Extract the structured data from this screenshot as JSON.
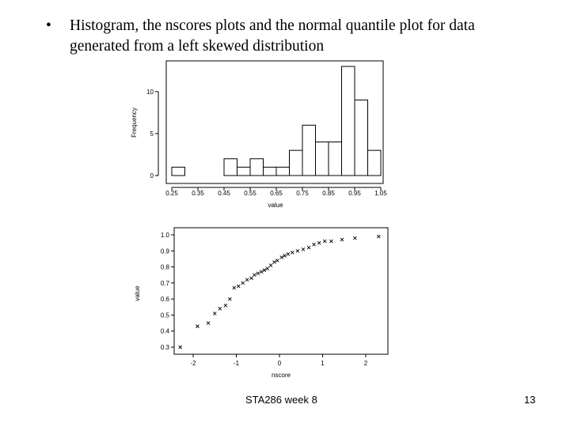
{
  "slide": {
    "bullet": "•",
    "title_text": "Histogram, the nscores plots and the normal quantile plot for data generated from a left skewed  distribution",
    "footer_text": "STA286 week 8",
    "page_number": "13"
  },
  "chart_data": [
    {
      "type": "bar",
      "subtype": "histogram",
      "xlabel": "value",
      "ylabel": "Frequency",
      "bin_width": 0.05,
      "bin_starts": [
        0.25,
        0.3,
        0.35,
        0.4,
        0.45,
        0.5,
        0.55,
        0.6,
        0.65,
        0.7,
        0.75,
        0.8,
        0.85,
        0.9,
        0.95,
        1.0
      ],
      "values": [
        1,
        0,
        0,
        0,
        2,
        1,
        2,
        1,
        1,
        3,
        6,
        4,
        4,
        13,
        9,
        3
      ],
      "xlim": [
        0.25,
        1.05
      ],
      "ylim": [
        0,
        13
      ],
      "x_ticks": [
        0.25,
        0.35,
        0.45,
        0.55,
        0.65,
        0.75,
        0.85,
        0.95,
        1.05
      ],
      "x_tick_labels": [
        "0.25",
        "0.35",
        "0.45",
        "0.55",
        "0.65",
        "0.75",
        "0.85",
        "0.95",
        "1.05"
      ],
      "y_ticks": [
        0,
        5,
        10
      ],
      "y_tick_labels": [
        "0",
        "5",
        "10"
      ],
      "grid": false
    },
    {
      "type": "scatter",
      "xlabel": "nscore",
      "ylabel": "value",
      "marker": "x",
      "x_ticks": [
        -2,
        -1,
        0,
        1,
        2
      ],
      "x_tick_labels": [
        "-2",
        "-1",
        "0",
        "1",
        "2"
      ],
      "y_ticks": [
        0.3,
        0.4,
        0.5,
        0.6,
        0.7,
        0.8,
        0.9,
        1.0
      ],
      "y_tick_labels": [
        "0.3",
        "0.4",
        "0.5",
        "0.6",
        "0.7",
        "0.8",
        "0.9",
        "1.0"
      ],
      "xlim": [
        -2.55,
        2.55
      ],
      "ylim": [
        0.27,
        1.01
      ],
      "points": [
        [
          -2.3,
          0.3
        ],
        [
          -1.9,
          0.43
        ],
        [
          -1.65,
          0.45
        ],
        [
          -1.5,
          0.51
        ],
        [
          -1.38,
          0.54
        ],
        [
          -1.25,
          0.56
        ],
        [
          -1.15,
          0.6
        ],
        [
          -1.05,
          0.67
        ],
        [
          -0.95,
          0.68
        ],
        [
          -0.85,
          0.7
        ],
        [
          -0.75,
          0.72
        ],
        [
          -0.65,
          0.73
        ],
        [
          -0.58,
          0.75
        ],
        [
          -0.5,
          0.76
        ],
        [
          -0.42,
          0.77
        ],
        [
          -0.35,
          0.78
        ],
        [
          -0.28,
          0.79
        ],
        [
          -0.2,
          0.81
        ],
        [
          -0.12,
          0.83
        ],
        [
          -0.05,
          0.84
        ],
        [
          0.05,
          0.86
        ],
        [
          0.12,
          0.87
        ],
        [
          0.2,
          0.88
        ],
        [
          0.3,
          0.89
        ],
        [
          0.42,
          0.9
        ],
        [
          0.55,
          0.91
        ],
        [
          0.68,
          0.92
        ],
        [
          0.8,
          0.94
        ],
        [
          0.92,
          0.95
        ],
        [
          1.05,
          0.96
        ],
        [
          1.2,
          0.96
        ],
        [
          1.45,
          0.97
        ],
        [
          1.75,
          0.98
        ],
        [
          2.3,
          0.99
        ]
      ],
      "grid": false
    }
  ]
}
